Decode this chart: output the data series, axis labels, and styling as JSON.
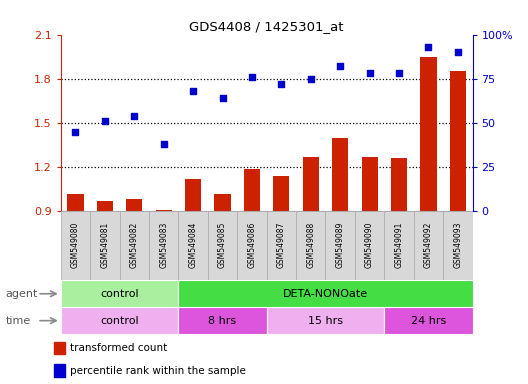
{
  "title": "GDS4408 / 1425301_at",
  "samples": [
    "GSM549080",
    "GSM549081",
    "GSM549082",
    "GSM549083",
    "GSM549084",
    "GSM549085",
    "GSM549086",
    "GSM549087",
    "GSM549088",
    "GSM549089",
    "GSM549090",
    "GSM549091",
    "GSM549092",
    "GSM549093"
  ],
  "transformed_count": [
    1.02,
    0.97,
    0.98,
    0.91,
    1.12,
    1.02,
    1.19,
    1.14,
    1.27,
    1.4,
    1.27,
    1.26,
    1.95,
    1.85
  ],
  "percentile_rank": [
    45,
    51,
    54,
    38,
    68,
    64,
    76,
    72,
    75,
    82,
    78,
    78,
    93,
    90
  ],
  "ylim_left": [
    0.9,
    2.1
  ],
  "ylim_right": [
    0,
    100
  ],
  "yticks_left": [
    0.9,
    1.2,
    1.5,
    1.8,
    2.1
  ],
  "yticks_right": [
    0,
    25,
    50,
    75,
    100
  ],
  "ytick_labels_left": [
    "0.9",
    "1.2",
    "1.5",
    "1.8",
    "2.1"
  ],
  "ytick_labels_right": [
    "0",
    "25",
    "50",
    "75",
    "100%"
  ],
  "hlines": [
    1.2,
    1.5,
    1.8
  ],
  "bar_color": "#cc2200",
  "scatter_color": "#0000cc",
  "bar_bottom": 0.9,
  "agent_groups": [
    {
      "label": "control",
      "start": 0,
      "end": 4,
      "color": "#aaeea0"
    },
    {
      "label": "DETA-NONOate",
      "start": 4,
      "end": 14,
      "color": "#44dd44"
    }
  ],
  "time_groups": [
    {
      "label": "control",
      "start": 0,
      "end": 4,
      "color": "#f0b0f0"
    },
    {
      "label": "8 hrs",
      "start": 4,
      "end": 7,
      "color": "#dd55dd"
    },
    {
      "label": "15 hrs",
      "start": 7,
      "end": 11,
      "color": "#f0b0f0"
    },
    {
      "label": "24 hrs",
      "start": 11,
      "end": 14,
      "color": "#dd55dd"
    }
  ],
  "legend_items": [
    {
      "label": "transformed count",
      "color": "#cc2200"
    },
    {
      "label": "percentile rank within the sample",
      "color": "#0000cc"
    }
  ],
  "agent_label": "agent",
  "time_label": "time",
  "sample_box_color": "#d8d8d8",
  "sample_box_edge": "#aaaaaa"
}
